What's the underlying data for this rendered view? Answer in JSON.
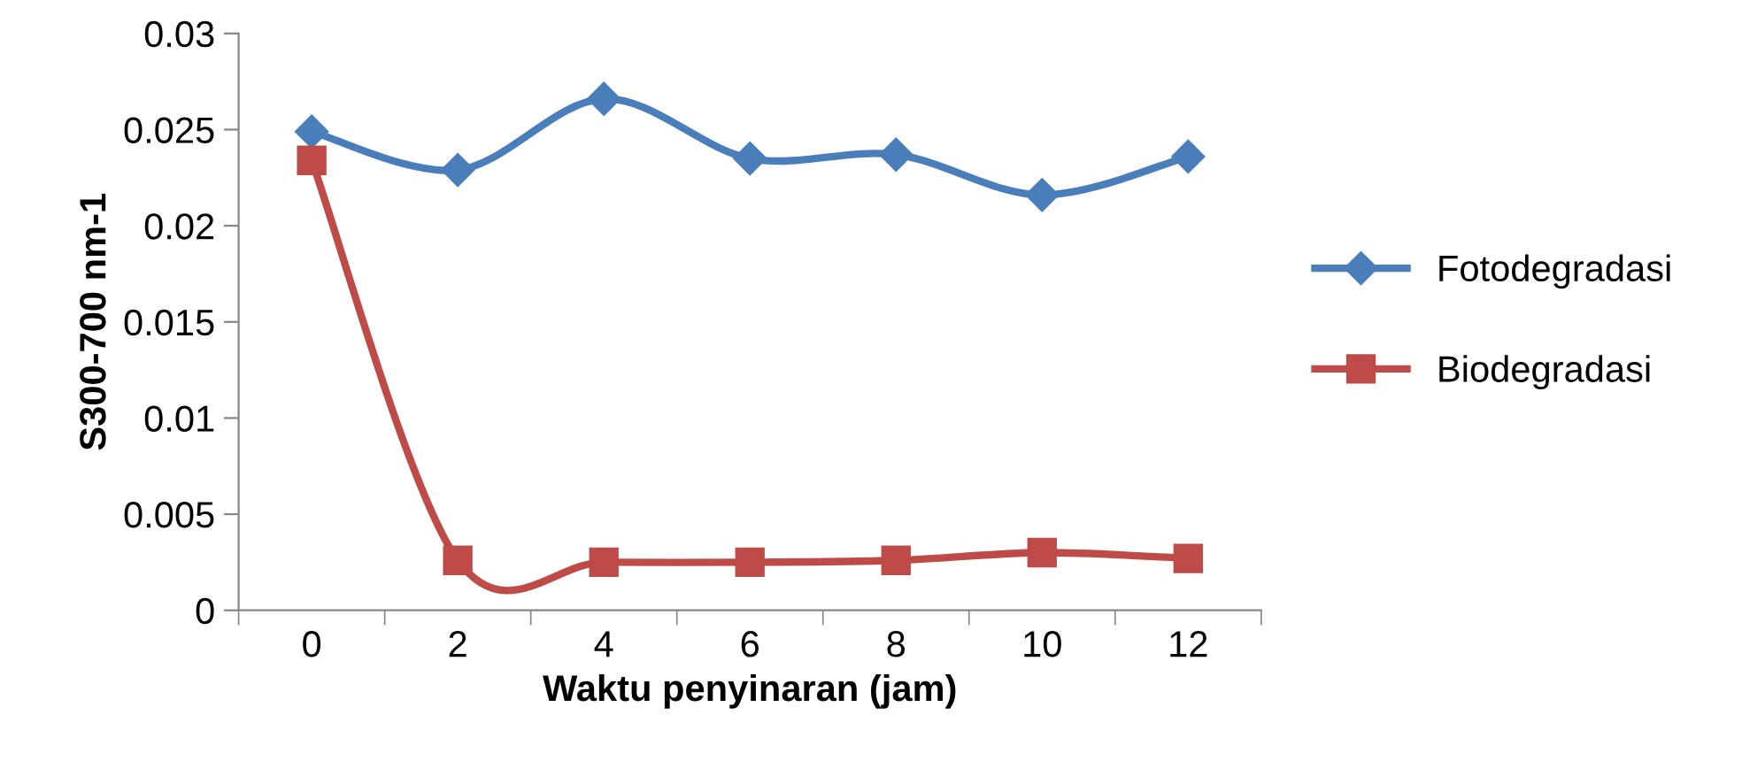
{
  "chart_data": {
    "type": "line",
    "xlabel": "Waktu penyinaran (jam)",
    "ylabel": "S300-700 nm-1",
    "categories": [
      "0",
      "2",
      "4",
      "6",
      "8",
      "10",
      "12"
    ],
    "series": [
      {
        "name": "Fotodegradasi",
        "color": "#4a7ebb",
        "marker": "diamond",
        "values": [
          0.0249,
          0.0229,
          0.0266,
          0.0235,
          0.0237,
          0.0216,
          0.0236
        ]
      },
      {
        "name": "Biodegradasi",
        "color": "#be4b48",
        "marker": "square",
        "values": [
          0.0234,
          0.0026,
          0.0025,
          0.0025,
          0.0026,
          0.003,
          0.0027
        ]
      }
    ],
    "ylim": [
      0,
      0.03
    ],
    "yticks": [
      {
        "value": 0,
        "label": "0"
      },
      0.005,
      0.01,
      0.015,
      0.02,
      0.025,
      0.03
    ],
    "grid": false,
    "legend": "right",
    "line_style": "solid"
  }
}
